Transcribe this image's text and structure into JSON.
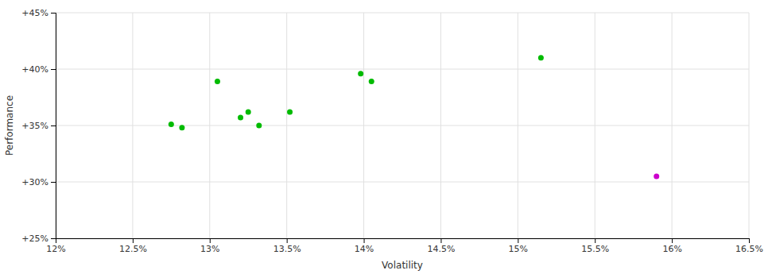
{
  "chart_data": {
    "type": "scatter",
    "xlabel": "Volatility",
    "ylabel": "Performance",
    "xlim": [
      0.12,
      0.165
    ],
    "ylim": [
      0.25,
      0.45
    ],
    "xticks": [
      {
        "value": 0.12,
        "label": "12%"
      },
      {
        "value": 0.125,
        "label": "12.5%"
      },
      {
        "value": 0.13,
        "label": "13%"
      },
      {
        "value": 0.135,
        "label": "13.5%"
      },
      {
        "value": 0.14,
        "label": "14%"
      },
      {
        "value": 0.145,
        "label": "14.5%"
      },
      {
        "value": 0.15,
        "label": "15%"
      },
      {
        "value": 0.155,
        "label": "15.5%"
      },
      {
        "value": 0.16,
        "label": "16%"
      },
      {
        "value": 0.165,
        "label": "16.5%"
      }
    ],
    "yticks": [
      {
        "value": 0.25,
        "label": "+25%"
      },
      {
        "value": 0.3,
        "label": "+30%"
      },
      {
        "value": 0.35,
        "label": "+35%"
      },
      {
        "value": 0.4,
        "label": "+40%"
      },
      {
        "value": 0.45,
        "label": "+45%"
      }
    ],
    "grid": true,
    "series": [
      {
        "color": "#00bb00",
        "x": [
          0.1275,
          0.1282,
          0.1305,
          0.132,
          0.1325,
          0.1332,
          0.1352,
          0.1398,
          0.1405,
          0.1515
        ],
        "values": [
          0.351,
          0.348,
          0.389,
          0.357,
          0.362,
          0.35,
          0.362,
          0.396,
          0.389,
          0.41
        ]
      },
      {
        "color": "#cc00cc",
        "x": [
          0.159
        ],
        "values": [
          0.305
        ]
      }
    ]
  }
}
